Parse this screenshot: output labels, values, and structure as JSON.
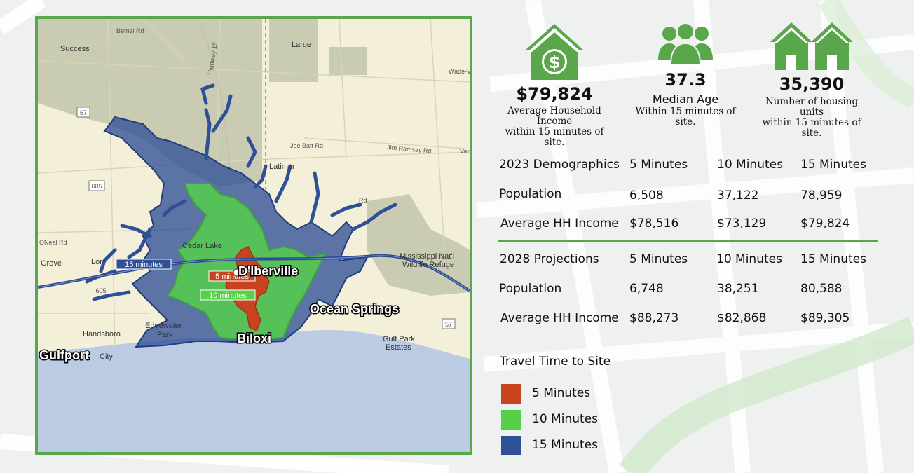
{
  "colors": {
    "accent_green": "#5aa64a",
    "zone_5": "#c8431f",
    "zone_10": "#56cf4b",
    "zone_15": "#2f4f96",
    "water": "#bccbe4",
    "land": "#f3efd8",
    "park": "#c9ccb3"
  },
  "map": {
    "towns": {
      "success": "Success",
      "larue": "Larue",
      "wade_v": "Wade-V",
      "latimer": "Latimer",
      "grove": "Grove",
      "onealrd": "ONeal Rd",
      "cedar_lake": "Cedar Lake",
      "lor": "Lor",
      "handsboro": "Handsboro",
      "edgewater": "Edgewater",
      "park": "Park",
      "city": "City",
      "gulf_park_1": "Gulf Park",
      "gulf_park_2": "Estates",
      "refuge_1": "Mississippi Nat'l",
      "refuge_2": "Wildlife Refuge",
      "var": "Var"
    },
    "roads": {
      "bemel": "Bemel Rd",
      "highway15": "Highway 15",
      "joe_batt": "Joe Batt Rd",
      "jim_ramsay": "Jim Ramsay Rd",
      "rd": "Rd"
    },
    "shields": {
      "r67": "67",
      "r605": "605",
      "r605b": "605",
      "r57": "57"
    },
    "cities": {
      "diberville": "D'Iberville",
      "ocean_springs": "Ocean Springs",
      "biloxi": "Biloxi",
      "gulfport": "Gulfport"
    },
    "zone_labels": {
      "min15": "15 minutes",
      "min5": "5 minutes",
      "min10": "10 minutes"
    }
  },
  "stats": {
    "income": {
      "value": "$79,824",
      "line1": "Average Household Income",
      "line2": "within 15 minutes of site.",
      "icon": "house-dollar-icon"
    },
    "age": {
      "value": "37.3",
      "title": "Median Age",
      "line1": "Within 15 minutes of site.",
      "icon": "people-icon"
    },
    "housing": {
      "value": "35,390",
      "line1": "Number of housing units",
      "line2": "within 15 minutes of site.",
      "icon": "houses-icon"
    }
  },
  "demographics_2023": {
    "header": [
      "2023 Demographics",
      "5 Minutes",
      "10 Minutes",
      "15 Minutes"
    ],
    "rows": [
      {
        "label": "Population",
        "v5": "6,508",
        "v10": "37,122",
        "v15": "78,959"
      },
      {
        "label": "Average HH Income",
        "v5": "$78,516",
        "v10": "$73,129",
        "v15": "$79,824"
      }
    ]
  },
  "projections_2028": {
    "header": [
      "2028 Projections",
      "5 Minutes",
      "10 Minutes",
      "15 Minutes"
    ],
    "rows": [
      {
        "label": "Population",
        "v5": "6,748",
        "v10": "38,251",
        "v15": "80,588"
      },
      {
        "label": "Average HH Income",
        "v5": "$88,273",
        "v10": "$82,868",
        "v15": "$89,305"
      }
    ]
  },
  "legend": {
    "title": "Travel Time to Site",
    "items": [
      {
        "label": "5 Minutes",
        "color": "#c8431f"
      },
      {
        "label": "10 Minutes",
        "color": "#56cf4b"
      },
      {
        "label": "15 Minutes",
        "color": "#2f4f96"
      }
    ]
  }
}
